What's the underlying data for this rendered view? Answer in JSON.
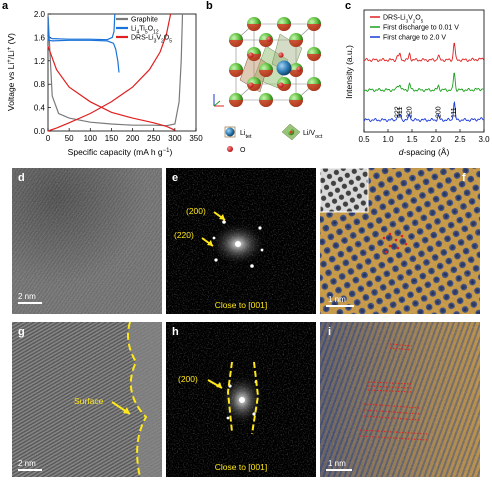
{
  "panels": {
    "a": {
      "letter": "a"
    },
    "b": {
      "letter": "b"
    },
    "c": {
      "letter": "c"
    },
    "d": {
      "letter": "d",
      "scalebar": "2 nm"
    },
    "e": {
      "letter": "e",
      "label1": "(200)",
      "label2": "(220)",
      "caption": "Close to [001]"
    },
    "f": {
      "letter": "f",
      "scalebar": "1 nm"
    },
    "g": {
      "letter": "g",
      "scalebar": "2 nm",
      "label": "Surface"
    },
    "h": {
      "letter": "h",
      "label": "(200)",
      "caption": "Close to [001]"
    },
    "i": {
      "letter": "i",
      "scalebar": "1 nm"
    }
  },
  "panel_b_legend": {
    "li_tet": "Li",
    "li_tet_sub": "tet",
    "li_v_oct": "Li/V",
    "li_v_oct_sub": "oct",
    "o": "O"
  },
  "chart_data": [
    {
      "type": "line",
      "panel": "a",
      "xlabel": "Specific capacity (mA h g⁻¹)",
      "ylabel": "Voltage vs Li⁺/Li⁺ (V)",
      "xlim": [
        0,
        350
      ],
      "ylim": [
        0,
        2.0
      ],
      "xticks": [
        "0",
        "50",
        "100",
        "150",
        "200",
        "250",
        "300",
        "350"
      ],
      "yticks": [
        "0.0",
        "0.4",
        "0.8",
        "1.2",
        "1.6",
        "2.0"
      ],
      "legend": [
        "Graphite",
        "Li₄Ti₅O₁₂",
        "DRS-Li₃V₂O₅"
      ],
      "legend_colors": [
        "#7a7a7a",
        "#1a73d9",
        "#e02020"
      ],
      "series": [
        {
          "name": "Graphite",
          "color": "#7a7a7a",
          "x": [
            0,
            10,
            25,
            50,
            100,
            150,
            200,
            250,
            280,
            300,
            310,
            315,
            318
          ],
          "y": [
            2.0,
            0.6,
            0.3,
            0.22,
            0.15,
            0.12,
            0.1,
            0.1,
            0.09,
            0.12,
            0.5,
            1.2,
            2.0
          ]
        },
        {
          "name": "Li₄Ti₅O₁₂",
          "color": "#1a73d9",
          "x": [
            0,
            1,
            3,
            10,
            50,
            100,
            140,
            155,
            160,
            165,
            168
          ],
          "y": [
            1.62,
            1.55,
            1.55,
            1.54,
            1.55,
            1.55,
            1.54,
            1.5,
            1.4,
            1.2,
            1.0
          ]
        },
        {
          "name": "Li₄Ti₅O₁₂",
          "color": "#1a73d9",
          "x": [
            0,
            1,
            3,
            10,
            50,
            100,
            140,
            152,
            156,
            158
          ],
          "y": [
            1.95,
            1.65,
            1.6,
            1.58,
            1.57,
            1.57,
            1.56,
            1.6,
            1.7,
            2.0
          ]
        },
        {
          "name": "DRS-Li₃V₂O₅",
          "color": "#e02020",
          "x": [
            0,
            20,
            50,
            100,
            150,
            200,
            250,
            280,
            295,
            300
          ],
          "y": [
            1.45,
            1.05,
            0.75,
            0.5,
            0.32,
            0.22,
            0.14,
            0.08,
            0.03,
            0.01
          ]
        },
        {
          "name": "DRS-Li₃V₂O₅",
          "color": "#e02020",
          "x": [
            0,
            20,
            50,
            100,
            150,
            200,
            240,
            265,
            280,
            290
          ],
          "y": [
            0.0,
            0.05,
            0.14,
            0.3,
            0.5,
            0.75,
            1.05,
            1.35,
            1.65,
            2.0
          ]
        }
      ]
    },
    {
      "type": "line",
      "panel": "c",
      "xlabel": "d-spacing (Å)",
      "ylabel": "Intensity (a.u.)",
      "xlim": [
        0.5,
        3.0
      ],
      "xticks": [
        "0.5",
        "1.0",
        "1.5",
        "2.0",
        "2.5",
        "3.0"
      ],
      "legend": [
        "DRS-Li₃V₂O₅",
        "First discharge to 0.01 V",
        "First charge to 2.0 V"
      ],
      "legend_colors": [
        "#e02020",
        "#1aa01a",
        "#1a3ad9"
      ],
      "peak_labels": [
        "222",
        "311",
        "220",
        "200",
        "111"
      ],
      "peak_positions": [
        1.2,
        1.25,
        1.45,
        2.05,
        2.38
      ],
      "series": [
        {
          "name": "DRS-Li₃V₂O₅",
          "color": "#e02020",
          "offset": 2.0
        },
        {
          "name": "First discharge to 0.01 V",
          "color": "#1aa01a",
          "offset": 1.0
        },
        {
          "name": "First charge to 2.0 V",
          "color": "#1a3ad9",
          "offset": 0.0
        }
      ]
    }
  ]
}
